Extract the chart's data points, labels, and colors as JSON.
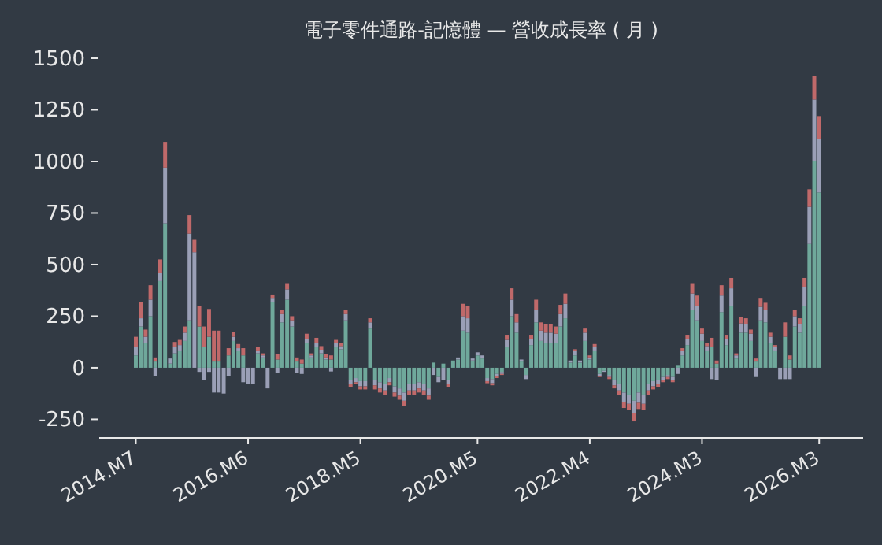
{
  "chart_data": {
    "type": "bar",
    "title": "電子零件通路-記憶體 — 營收成長率 ( 月 )",
    "stacked": true,
    "categories": [
      "2014.M7",
      null,
      null,
      null,
      null,
      null,
      null,
      null,
      null,
      null,
      null,
      null,
      null,
      null,
      null,
      null,
      null,
      null,
      null,
      null,
      null,
      null,
      null,
      "2016.M6",
      null,
      null,
      null,
      null,
      null,
      null,
      null,
      null,
      null,
      null,
      null,
      null,
      null,
      null,
      null,
      null,
      null,
      null,
      null,
      null,
      null,
      null,
      "2018.M5",
      null,
      null,
      null,
      null,
      null,
      null,
      null,
      null,
      null,
      null,
      null,
      null,
      null,
      null,
      null,
      null,
      null,
      null,
      null,
      null,
      null,
      null,
      null,
      "2020.M5",
      null,
      null,
      null,
      null,
      null,
      null,
      null,
      null,
      null,
      null,
      null,
      null,
      null,
      null,
      null,
      null,
      null,
      null,
      null,
      null,
      null,
      null,
      "2022.M4",
      null,
      null,
      null,
      null,
      null,
      null,
      null,
      null,
      null,
      null,
      null,
      null,
      null,
      null,
      null,
      null,
      null,
      null,
      null,
      null,
      null,
      null,
      "2024.M3",
      null,
      null,
      null,
      null,
      null,
      null,
      null,
      null,
      null,
      null,
      null,
      null,
      null,
      null,
      null,
      null,
      null,
      null,
      null,
      null,
      null,
      null,
      null,
      "2026.M3"
    ],
    "series": [
      {
        "color": "#6fa89b",
        "values": [
          60,
          200,
          120,
          250,
          30,
          420,
          700,
          20,
          70,
          80,
          130,
          230,
          0,
          200,
          100,
          150,
          30,
          30,
          0,
          60,
          130,
          80,
          60,
          0,
          0,
          70,
          50,
          0,
          320,
          40,
          220,
          330,
          200,
          30,
          20,
          120,
          50,
          100,
          70,
          40,
          40,
          100,
          90,
          230,
          -60,
          -50,
          -65,
          -65,
          190,
          -60,
          -70,
          -80,
          -50,
          -90,
          -100,
          -120,
          -80,
          -80,
          -70,
          -80,
          -100,
          25,
          -45,
          20,
          -60,
          35,
          40,
          180,
          170,
          35,
          60,
          45,
          -50,
          -55,
          -30,
          -20,
          100,
          250,
          170,
          30,
          -35,
          110,
          220,
          130,
          120,
          120,
          120,
          200,
          240,
          25,
          60,
          25,
          130,
          40,
          80,
          -30,
          -15,
          -35,
          -60,
          -80,
          -120,
          -130,
          -160,
          -120,
          -130,
          -80,
          -65,
          -60,
          -45,
          -35,
          -45,
          10,
          60,
          110,
          280,
          230,
          130,
          80,
          100,
          20,
          270,
          110,
          300,
          45,
          170,
          170,
          130,
          30,
          230,
          220,
          120,
          80,
          0,
          150,
          40,
          200,
          170,
          300,
          600,
          1000,
          850
        ]
      },
      {
        "color": "#9a9fb6",
        "values": [
          40,
          40,
          30,
          80,
          -40,
          40,
          270,
          25,
          30,
          30,
          40,
          420,
          560,
          -20,
          -60,
          -20,
          -120,
          -120,
          -125,
          -40,
          20,
          15,
          -70,
          -80,
          -80,
          10,
          10,
          -100,
          15,
          -25,
          40,
          50,
          30,
          -25,
          -30,
          20,
          10,
          20,
          15,
          10,
          -18,
          20,
          15,
          30,
          -20,
          -20,
          -25,
          -25,
          30,
          -25,
          -30,
          -30,
          -20,
          -30,
          -35,
          -40,
          -30,
          -30,
          -30,
          -30,
          -35,
          -35,
          -25,
          -60,
          -20,
          0,
          10,
          70,
          70,
          10,
          15,
          15,
          -15,
          -20,
          -10,
          -10,
          35,
          80,
          50,
          10,
          -20,
          30,
          60,
          50,
          50,
          50,
          45,
          60,
          70,
          10,
          20,
          10,
          40,
          10,
          20,
          -10,
          -5,
          -10,
          -25,
          -30,
          -45,
          -45,
          -60,
          -50,
          -45,
          -30,
          -25,
          -20,
          -15,
          -10,
          -15,
          -30,
          20,
          30,
          80,
          70,
          35,
          25,
          -55,
          -60,
          80,
          30,
          85,
          15,
          45,
          40,
          35,
          -45,
          65,
          60,
          30,
          20,
          -55,
          -55,
          -55,
          50,
          40,
          90,
          180,
          300,
          260
        ]
      },
      {
        "color": "#c0696a",
        "values": [
          50,
          80,
          35,
          70,
          20,
          65,
          125,
          0,
          25,
          25,
          30,
          90,
          60,
          100,
          100,
          135,
          150,
          150,
          0,
          35,
          25,
          20,
          35,
          0,
          0,
          20,
          10,
          0,
          20,
          25,
          20,
          30,
          20,
          20,
          20,
          25,
          10,
          25,
          20,
          15,
          20,
          15,
          15,
          20,
          -15,
          -10,
          -15,
          -15,
          20,
          -20,
          -20,
          -20,
          -15,
          -20,
          -20,
          -25,
          -20,
          -20,
          -20,
          -20,
          -20,
          0,
          0,
          0,
          -15,
          0,
          0,
          60,
          60,
          0,
          0,
          0,
          -10,
          -10,
          -10,
          -5,
          25,
          55,
          40,
          0,
          0,
          20,
          50,
          40,
          40,
          40,
          35,
          45,
          50,
          0,
          10,
          0,
          20,
          10,
          15,
          -5,
          0,
          -10,
          -15,
          -20,
          -30,
          -30,
          -40,
          -30,
          -30,
          -20,
          -15,
          -15,
          -10,
          -10,
          -10,
          0,
          15,
          20,
          50,
          50,
          25,
          15,
          45,
          15,
          50,
          20,
          50,
          10,
          30,
          30,
          20,
          15,
          40,
          35,
          20,
          10,
          0,
          70,
          20,
          30,
          30,
          45,
          85,
          115,
          110
        ]
      }
    ],
    "ylim": [
      -340,
      1500
    ],
    "yticks": [
      -250,
      0,
      250,
      500,
      750,
      1000,
      1250,
      1500
    ]
  }
}
